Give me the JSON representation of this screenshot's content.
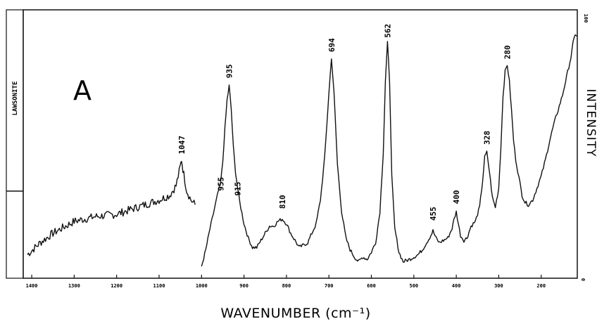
{
  "chart_data": {
    "type": "line",
    "panel_label": "A",
    "sample_label": "LAWSONITE",
    "xlabel": "WAVENUMBER (cm⁻¹)",
    "ylabel": "INTENSITY",
    "xlim": [
      1420,
      115
    ],
    "ylim": [
      0,
      100
    ],
    "x_ticks": [
      1400,
      1300,
      1200,
      1100,
      1000,
      900,
      800,
      700,
      600,
      500,
      400,
      300,
      200,
      100
    ],
    "x_tick_labels": [
      "1400",
      "1300",
      "1200",
      "1100",
      "1000",
      "900",
      "800",
      "700",
      "600",
      "500",
      "400",
      "300",
      "200",
      "100"
    ],
    "right_axis_labels": [
      "100",
      "0"
    ],
    "grid": false,
    "legend": "none",
    "line_color": "#111111",
    "peak_labels": [
      {
        "x": 1047,
        "y": 47.5,
        "text": "1047"
      },
      {
        "x": 955,
        "y": 32,
        "text": "955"
      },
      {
        "x": 935,
        "y": 79.5,
        "text": "935"
      },
      {
        "x": 915,
        "y": 30,
        "text": "915"
      },
      {
        "x": 810,
        "y": 24.5,
        "text": "810"
      },
      {
        "x": 694,
        "y": 90.5,
        "text": "694"
      },
      {
        "x": 562,
        "y": 96.5,
        "text": "562"
      },
      {
        "x": 455,
        "y": 19.5,
        "text": "455"
      },
      {
        "x": 400,
        "y": 26.5,
        "text": "400"
      },
      {
        "x": 328,
        "y": 51.5,
        "text": "328"
      },
      {
        "x": 280,
        "y": 87.5,
        "text": "280"
      }
    ],
    "series": [
      {
        "points": [
          [
            1410,
            7
          ],
          [
            1380,
            12
          ],
          [
            1350,
            16
          ],
          [
            1300,
            21
          ],
          [
            1250,
            23
          ],
          [
            1200,
            24
          ],
          [
            1150,
            27
          ],
          [
            1100,
            30
          ],
          [
            1075,
            32
          ],
          [
            1060,
            36
          ],
          [
            1050,
            44
          ],
          [
            1047,
            47
          ],
          [
            1044,
            43
          ],
          [
            1035,
            34
          ],
          [
            1025,
            30
          ],
          [
            1015,
            28
          ]
        ]
      },
      {
        "points": [
          [
            1000,
            2
          ],
          [
            990,
            9
          ],
          [
            980,
            18
          ],
          [
            970,
            26
          ],
          [
            960,
            34
          ],
          [
            955,
            37
          ],
          [
            950,
            46
          ],
          [
            945,
            60
          ],
          [
            940,
            72
          ],
          [
            935,
            78
          ],
          [
            930,
            68
          ],
          [
            925,
            52
          ],
          [
            920,
            42
          ],
          [
            915,
            35
          ],
          [
            910,
            29
          ],
          [
            900,
            20
          ],
          [
            890,
            14
          ],
          [
            880,
            10
          ],
          [
            870,
            10
          ],
          [
            860,
            13
          ],
          [
            850,
            16
          ],
          [
            840,
            19
          ],
          [
            830,
            19
          ],
          [
            820,
            21
          ],
          [
            810,
            22
          ],
          [
            800,
            20
          ],
          [
            790,
            16
          ],
          [
            780,
            13
          ],
          [
            770,
            10
          ],
          [
            760,
            11
          ],
          [
            750,
            12
          ],
          [
            740,
            16
          ],
          [
            730,
            20
          ],
          [
            720,
            30
          ],
          [
            710,
            48
          ],
          [
            700,
            75
          ],
          [
            694,
            90
          ],
          [
            688,
            75
          ],
          [
            680,
            45
          ],
          [
            670,
            25
          ],
          [
            660,
            14
          ],
          [
            650,
            9
          ],
          [
            640,
            6
          ],
          [
            630,
            4
          ],
          [
            620,
            6
          ],
          [
            610,
            5
          ],
          [
            600,
            8
          ],
          [
            590,
            12
          ],
          [
            580,
            25
          ],
          [
            572,
            50
          ],
          [
            567,
            80
          ],
          [
            562,
            96
          ],
          [
            557,
            80
          ],
          [
            552,
            40
          ],
          [
            545,
            18
          ],
          [
            535,
            8
          ],
          [
            525,
            4
          ],
          [
            510,
            5
          ],
          [
            500,
            6
          ],
          [
            490,
            7
          ],
          [
            480,
            9
          ],
          [
            470,
            12
          ],
          [
            460,
            15
          ],
          [
            455,
            17
          ],
          [
            448,
            14
          ],
          [
            440,
            12
          ],
          [
            430,
            13
          ],
          [
            420,
            14
          ],
          [
            410,
            18
          ],
          [
            405,
            22
          ],
          [
            400,
            25
          ],
          [
            395,
            20
          ],
          [
            390,
            15
          ],
          [
            382,
            13
          ],
          [
            375,
            14
          ],
          [
            365,
            19
          ],
          [
            355,
            21
          ],
          [
            345,
            27
          ],
          [
            338,
            38
          ],
          [
            333,
            48
          ],
          [
            328,
            50
          ],
          [
            322,
            42
          ],
          [
            315,
            31
          ],
          [
            308,
            27
          ],
          [
            300,
            35
          ],
          [
            295,
            52
          ],
          [
            290,
            74
          ],
          [
            285,
            84
          ],
          [
            280,
            87
          ],
          [
            275,
            80
          ],
          [
            270,
            68
          ],
          [
            265,
            55
          ],
          [
            260,
            47
          ],
          [
            255,
            42
          ],
          [
            250,
            37
          ],
          [
            245,
            32
          ],
          [
            238,
            29
          ],
          [
            230,
            28
          ],
          [
            220,
            30
          ],
          [
            210,
            35
          ],
          [
            200,
            40
          ],
          [
            190,
            47
          ],
          [
            180,
            55
          ],
          [
            170,
            62
          ],
          [
            160,
            68
          ],
          [
            150,
            74
          ],
          [
            140,
            82
          ],
          [
            130,
            90
          ],
          [
            125,
            96
          ],
          [
            120,
            100
          ],
          [
            116,
            99
          ]
        ]
      }
    ]
  }
}
